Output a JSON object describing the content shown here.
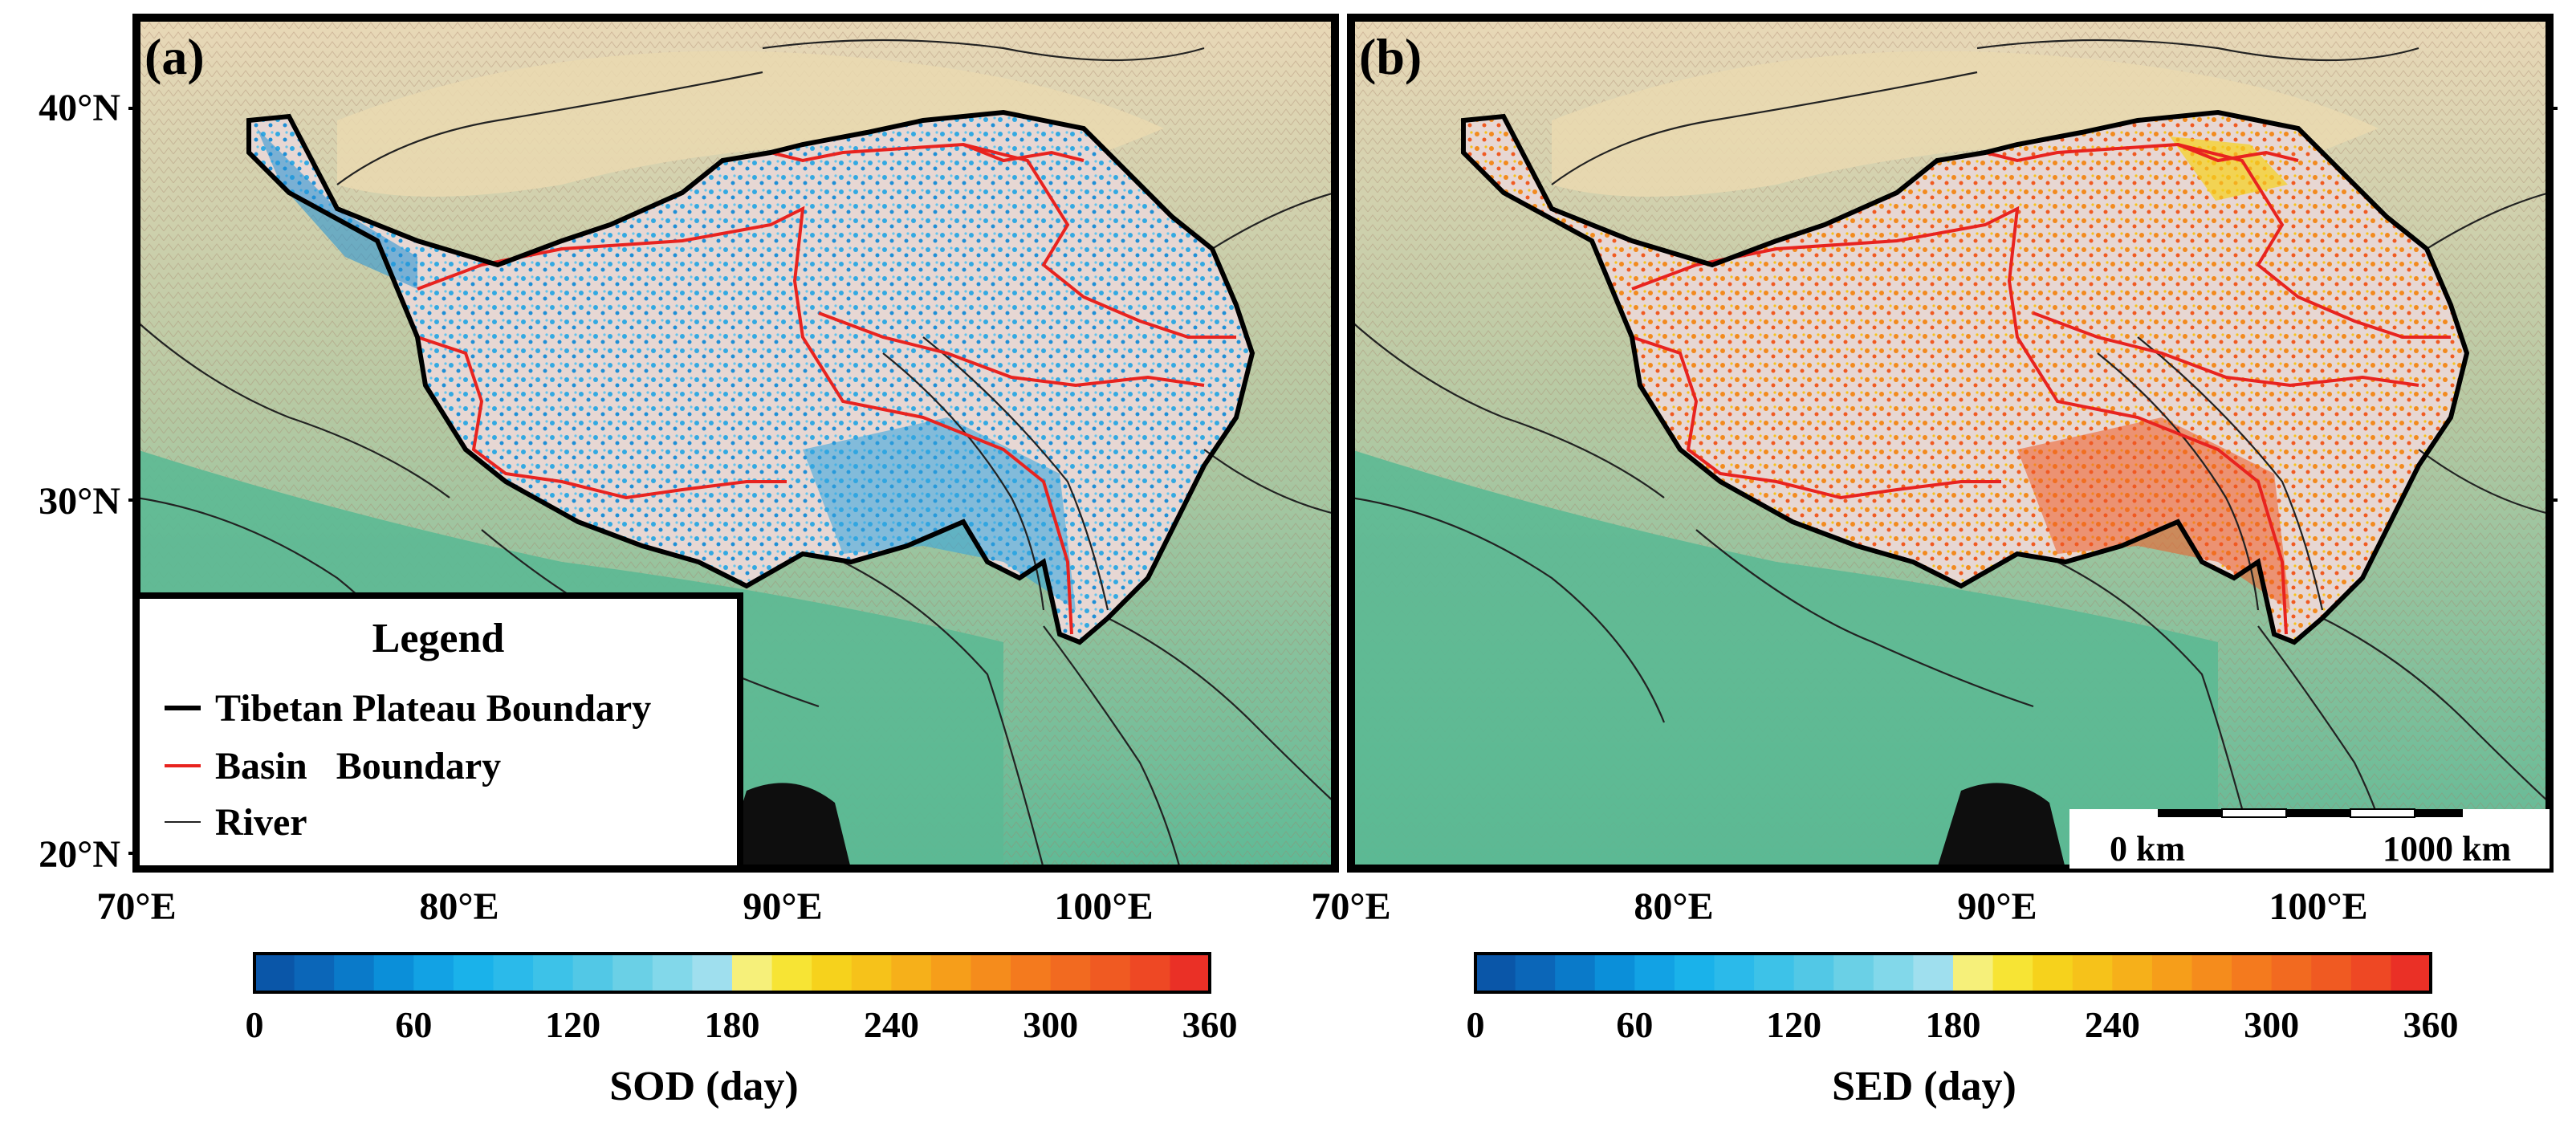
{
  "panels": [
    {
      "id": "a",
      "label": "(a)",
      "colorbar_title": "SOD (day)",
      "dominant_ramp": "blue",
      "lat_ticks": [
        "40°N",
        "30°N",
        "20°N"
      ],
      "lon_ticks": [
        "70°E",
        "80°E",
        "90°E",
        "100°E"
      ]
    },
    {
      "id": "b",
      "label": "(b)",
      "colorbar_title": "SED (day)",
      "dominant_ramp": "orange",
      "lon_ticks": [
        "70°E",
        "80°E",
        "90°E",
        "100°E"
      ]
    }
  ],
  "colorbar": {
    "ticks": [
      "0",
      "60",
      "120",
      "180",
      "240",
      "300",
      "360"
    ],
    "colors": [
      "#0a56a8",
      "#0b66b8",
      "#0a7ac9",
      "#0b8fd9",
      "#12a2e4",
      "#1ab2ea",
      "#2bbaea",
      "#3dc2e8",
      "#52c8e6",
      "#6ad0e6",
      "#82d8ea",
      "#9fdfee",
      "#f6f07a",
      "#f7e434",
      "#f6d21c",
      "#f6c21a",
      "#f6b01a",
      "#f69e1a",
      "#f58c1c",
      "#f47a1e",
      "#f26a20",
      "#f05a22",
      "#ee4824",
      "#ea3026"
    ]
  },
  "legend": {
    "title": "Legend",
    "items": [
      {
        "label": "Tibetan Plateau Boundary",
        "color": "#000000"
      },
      {
        "label": "Basin   Boundary",
        "color": "#e8231f"
      },
      {
        "label": "River",
        "color": "#222222"
      }
    ]
  },
  "scale_bar": {
    "left_label": "0 km",
    "right_label": "1000 km"
  },
  "colors": {
    "plateau_boundary": "#000000",
    "basin_boundary": "#e8231f",
    "river": "#222222",
    "lowland": "#6cc0a0",
    "mountain": "#d6b79c",
    "desert": "#e6cfa8",
    "sea": "#0e0e0e"
  }
}
